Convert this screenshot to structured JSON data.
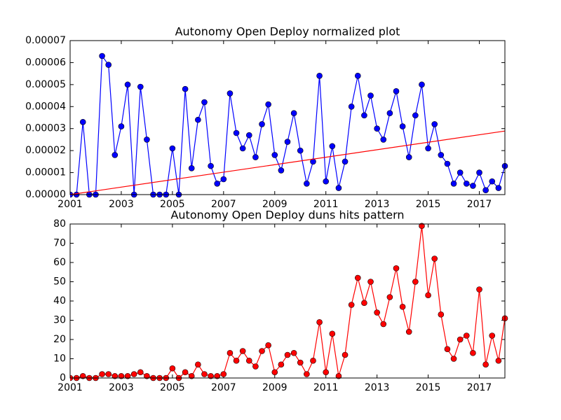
{
  "chart_data": [
    {
      "type": "line",
      "title": "Autonomy Open Deploy normalized plot",
      "x": [
        2001,
        2001.25,
        2001.5,
        2001.75,
        2002,
        2002.25,
        2002.5,
        2002.75,
        2003,
        2003.25,
        2003.5,
        2003.75,
        2004,
        2004.25,
        2004.5,
        2004.75,
        2005,
        2005.25,
        2005.5,
        2005.75,
        2006,
        2006.25,
        2006.5,
        2006.75,
        2007,
        2007.25,
        2007.5,
        2007.75,
        2008,
        2008.25,
        2008.5,
        2008.75,
        2009,
        2009.25,
        2009.5,
        2009.75,
        2010,
        2010.25,
        2010.5,
        2010.75,
        2011,
        2011.25,
        2011.5,
        2011.75,
        2012,
        2012.25,
        2012.5,
        2012.75,
        2013,
        2013.25,
        2013.5,
        2013.75,
        2014,
        2014.25,
        2014.5,
        2014.75,
        2015,
        2015.25,
        2015.5,
        2015.75,
        2016,
        2016.25,
        2016.5,
        2016.75,
        2017,
        2017.25,
        2017.5,
        2017.75,
        2018
      ],
      "series": [
        {
          "color": "#0000ff",
          "values": [
            0,
            0,
            3.3e-05,
            0,
            0,
            6.3e-05,
            5.9e-05,
            1.8e-05,
            3.1e-05,
            5e-05,
            0,
            4.9e-05,
            2.5e-05,
            0,
            0,
            0,
            2.1e-05,
            0,
            4.8e-05,
            1.2e-05,
            3.4e-05,
            4.2e-05,
            1.3e-05,
            5e-06,
            7e-06,
            4.6e-05,
            2.8e-05,
            2.1e-05,
            2.7e-05,
            1.7e-05,
            3.2e-05,
            4.1e-05,
            1.8e-05,
            1.1e-05,
            2.4e-05,
            3.7e-05,
            2e-05,
            5e-06,
            1.5e-05,
            5.4e-05,
            6e-06,
            2.2e-05,
            3e-06,
            1.5e-05,
            4e-05,
            5.4e-05,
            3.6e-05,
            4.5e-05,
            3e-05,
            2.5e-05,
            3.7e-05,
            4.7e-05,
            3.1e-05,
            1.7e-05,
            3.6e-05,
            5e-05,
            2.1e-05,
            3.2e-05,
            1.8e-05,
            1.4e-05,
            5e-06,
            1e-05,
            5e-06,
            4e-06,
            1e-05,
            2e-06,
            6e-06,
            3e-06,
            1.3e-05
          ]
        }
      ],
      "trend": {
        "color": "#ff0000",
        "x": [
          2001,
          2018
        ],
        "values": [
          0,
          2.89e-05
        ]
      },
      "xlim": [
        2001,
        2018
      ],
      "xticks": [
        2001,
        2003,
        2005,
        2007,
        2009,
        2011,
        2013,
        2015,
        2017
      ],
      "ylim": [
        0,
        7e-05
      ],
      "yticks": [
        {
          "value": 0,
          "label": "0.00000"
        },
        {
          "value": 1e-05,
          "label": "0.00001"
        },
        {
          "value": 2e-05,
          "label": "0.00002"
        },
        {
          "value": 3e-05,
          "label": "0.00003"
        },
        {
          "value": 4e-05,
          "label": "0.00004"
        },
        {
          "value": 5e-05,
          "label": "0.00005"
        },
        {
          "value": 6e-05,
          "label": "0.00006"
        },
        {
          "value": 7e-05,
          "label": "0.00007"
        }
      ]
    },
    {
      "type": "line",
      "title": "Autonomy Open Deploy duns hits pattern",
      "x": [
        2001,
        2001.25,
        2001.5,
        2001.75,
        2002,
        2002.25,
        2002.5,
        2002.75,
        2003,
        2003.25,
        2003.5,
        2003.75,
        2004,
        2004.25,
        2004.5,
        2004.75,
        2005,
        2005.25,
        2005.5,
        2005.75,
        2006,
        2006.25,
        2006.5,
        2006.75,
        2007,
        2007.25,
        2007.5,
        2007.75,
        2008,
        2008.25,
        2008.5,
        2008.75,
        2009,
        2009.25,
        2009.5,
        2009.75,
        2010,
        2010.25,
        2010.5,
        2010.75,
        2011,
        2011.25,
        2011.5,
        2011.75,
        2012,
        2012.25,
        2012.5,
        2012.75,
        2013,
        2013.25,
        2013.5,
        2013.75,
        2014,
        2014.25,
        2014.5,
        2014.75,
        2015,
        2015.25,
        2015.5,
        2015.75,
        2016,
        2016.25,
        2016.5,
        2016.75,
        2017,
        2017.25,
        2017.5,
        2017.75,
        2018
      ],
      "series": [
        {
          "color": "#ff0000",
          "values": [
            0,
            0,
            1,
            0,
            0,
            2,
            2,
            1,
            1,
            1,
            2,
            3,
            1,
            0,
            0,
            0,
            5,
            0,
            3,
            1,
            7,
            2,
            1,
            1,
            2,
            13,
            9,
            14,
            9,
            6,
            14,
            17,
            3,
            7,
            12,
            13,
            8,
            2,
            9,
            29,
            3,
            23,
            1,
            12,
            38,
            52,
            39,
            50,
            34,
            28,
            42,
            57,
            37,
            24,
            50,
            79,
            43,
            62,
            33,
            15,
            10,
            20,
            22,
            13,
            46,
            7,
            22,
            9,
            31
          ]
        }
      ],
      "xlim": [
        2001,
        2018
      ],
      "xticks": [
        2001,
        2003,
        2005,
        2007,
        2009,
        2011,
        2013,
        2015,
        2017
      ],
      "ylim": [
        0,
        80
      ],
      "yticks": [
        0,
        10,
        20,
        30,
        40,
        50,
        60,
        70,
        80
      ]
    }
  ]
}
